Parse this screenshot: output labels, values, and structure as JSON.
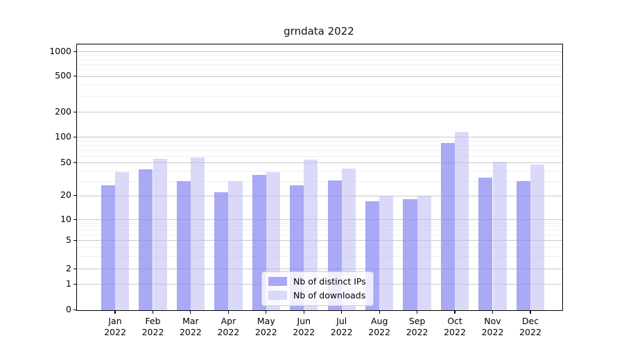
{
  "title": "grndata 2022",
  "colors": {
    "bar_distinct_ips": "rgba(136,136,241,0.72)",
    "bar_downloads": "rgba(188,188,242,0.55)",
    "grid_major": "#c8c8c8",
    "grid_minor": "#efefef",
    "axis": "#000000",
    "legend_border": "#cccccc"
  },
  "chart_data": {
    "type": "bar",
    "title": "grndata 2022",
    "categories": [
      "Jan 2022",
      "Feb 2022",
      "Mar 2022",
      "Apr 2022",
      "May 2022",
      "Jun 2022",
      "Jul 2022",
      "Aug 2022",
      "Sep 2022",
      "Oct 2022",
      "Nov 2022",
      "Dec 2022"
    ],
    "category_months": [
      "Jan",
      "Feb",
      "Mar",
      "Apr",
      "May",
      "Jun",
      "Jul",
      "Aug",
      "Sep",
      "Oct",
      "Nov",
      "Dec"
    ],
    "category_year": "2022",
    "series": [
      {
        "name": "Nb of distinct IPs",
        "values": [
          27,
          42,
          30,
          22,
          36,
          27,
          31,
          17,
          18,
          86,
          33,
          30
        ]
      },
      {
        "name": "Nb of downloads",
        "values": [
          39,
          56,
          58,
          30,
          39,
          55,
          43,
          20,
          20,
          116,
          52,
          48
        ]
      }
    ],
    "xlabel": "",
    "ylabel": "",
    "yscale": "symlog",
    "y_ticks": [
      0,
      1,
      2,
      5,
      10,
      20,
      50,
      100,
      200,
      500,
      1000
    ],
    "y_minor_gridlines": [
      3,
      4,
      6,
      7,
      8,
      9,
      30,
      40,
      60,
      70,
      80,
      90,
      300,
      400,
      600,
      700,
      800,
      900
    ],
    "ylim": [
      0,
      1200
    ],
    "grid": true,
    "legend_position": "lower center"
  }
}
